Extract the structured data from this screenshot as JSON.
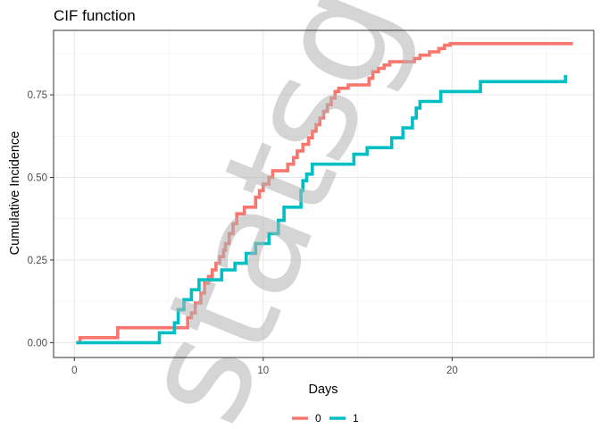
{
  "chart_data": {
    "type": "line",
    "step": true,
    "title": "CIF function",
    "xlabel": "Days",
    "ylabel": "Cumulative Incidence",
    "xlim": [
      -1.1,
      27.5
    ],
    "ylim": [
      -0.045,
      0.945
    ],
    "xticks": [
      0,
      10,
      20
    ],
    "xtick_labels": [
      "0",
      "10",
      "20"
    ],
    "yticks": [
      0,
      0.25,
      0.5,
      0.75
    ],
    "ytick_labels": [
      "0.00",
      "0.25",
      "0.50",
      "0.75"
    ],
    "grid": true,
    "legend_position": "bottom",
    "watermark": "statsg",
    "series": [
      {
        "name": "0",
        "color": "#F8766D",
        "x": [
          0.1,
          0.3,
          2.3,
          4.6,
          5.9,
          6.0,
          6.2,
          6.4,
          6.7,
          6.9,
          7.1,
          7.3,
          7.5,
          7.7,
          7.9,
          8.0,
          8.2,
          8.4,
          8.6,
          8.8,
          9.0,
          9.6,
          9.8,
          10.0,
          10.3,
          10.5,
          11.3,
          11.6,
          11.8,
          12.1,
          12.4,
          12.6,
          12.8,
          13.0,
          13.2,
          13.4,
          13.6,
          13.8,
          14.0,
          14.2,
          14.5,
          14.7,
          15.6,
          15.8,
          16.1,
          16.4,
          16.7,
          17.6,
          18.0,
          18.3,
          18.5,
          18.8,
          19.0,
          19.3,
          19.6,
          19.9,
          26.4
        ],
        "y": [
          0.0,
          0.015,
          0.045,
          0.045,
          0.045,
          0.075,
          0.09,
          0.12,
          0.15,
          0.18,
          0.2,
          0.22,
          0.24,
          0.26,
          0.28,
          0.3,
          0.33,
          0.36,
          0.39,
          0.39,
          0.41,
          0.44,
          0.46,
          0.48,
          0.5,
          0.52,
          0.54,
          0.56,
          0.58,
          0.6,
          0.62,
          0.64,
          0.66,
          0.68,
          0.7,
          0.72,
          0.74,
          0.76,
          0.77,
          0.77,
          0.78,
          0.78,
          0.8,
          0.82,
          0.83,
          0.84,
          0.85,
          0.85,
          0.86,
          0.87,
          0.87,
          0.88,
          0.88,
          0.89,
          0.9,
          0.905,
          0.905
        ]
      },
      {
        "name": "1",
        "color": "#00BFC4",
        "x": [
          0.1,
          3.5,
          4.5,
          5.3,
          5.5,
          5.8,
          6.2,
          6.6,
          7.0,
          7.8,
          8.5,
          9.1,
          9.6,
          10.3,
          10.8,
          11.1,
          11.4,
          12.0,
          12.1,
          12.3,
          12.6,
          14.4,
          14.8,
          15.1,
          15.5,
          15.9,
          16.8,
          17.4,
          17.9,
          18.1,
          18.3,
          19.4,
          20.9,
          21.5,
          26.0
        ],
        "y": [
          0.0,
          0.0,
          0.03,
          0.06,
          0.1,
          0.13,
          0.16,
          0.19,
          0.19,
          0.22,
          0.24,
          0.27,
          0.3,
          0.33,
          0.37,
          0.41,
          0.41,
          0.46,
          0.49,
          0.51,
          0.54,
          0.54,
          0.57,
          0.57,
          0.59,
          0.59,
          0.62,
          0.65,
          0.68,
          0.71,
          0.73,
          0.76,
          0.76,
          0.79,
          0.81
        ]
      }
    ]
  }
}
